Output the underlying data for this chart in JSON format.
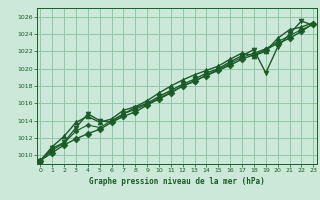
{
  "title": "Graphe pression niveau de la mer (hPa)",
  "bg_color": "#cce8d8",
  "grid_color": "#88c4a0",
  "line_color": "#1a5c28",
  "marker_color": "#1a5c28",
  "xlim": [
    -0.3,
    23.3
  ],
  "ylim": [
    1009.0,
    1027.0
  ],
  "yticks": [
    1010,
    1012,
    1014,
    1016,
    1018,
    1020,
    1022,
    1024,
    1026
  ],
  "xticks": [
    0,
    1,
    2,
    3,
    4,
    5,
    6,
    7,
    8,
    9,
    10,
    11,
    12,
    13,
    14,
    15,
    16,
    17,
    18,
    19,
    20,
    21,
    22,
    23
  ],
  "series": [
    {
      "y": [
        1009.4,
        1010.3,
        1011.2,
        1011.9,
        1012.5,
        1013.0,
        1013.8,
        1014.5,
        1015.0,
        1015.8,
        1016.5,
        1017.2,
        1018.0,
        1018.6,
        1019.2,
        1019.8,
        1020.4,
        1021.1,
        1021.6,
        1022.2,
        1022.9,
        1023.5,
        1024.3,
        1025.2
      ],
      "marker": "D",
      "ms": 3.5,
      "lw": 1.0
    },
    {
      "y": [
        1009.4,
        1011.0,
        1012.2,
        1013.8,
        1014.5,
        1013.8,
        1014.2,
        1015.2,
        1015.6,
        1016.3,
        1017.2,
        1018.0,
        1018.7,
        1019.3,
        1019.8,
        1020.3,
        1021.1,
        1021.8,
        1021.5,
        1022.0,
        1023.5,
        1024.5,
        1024.8,
        1025.3
      ],
      "marker": "^",
      "ms": 3.5,
      "lw": 1.0
    },
    {
      "y": [
        1009.4,
        1010.8,
        1011.5,
        1013.2,
        1014.8,
        1014.0,
        1013.8,
        1014.8,
        1015.5,
        1016.0,
        1016.8,
        1017.5,
        1018.2,
        1018.8,
        1019.5,
        1020.0,
        1020.8,
        1021.5,
        1022.2,
        1019.5,
        1022.5,
        1024.0,
        1025.5,
        1025.0
      ],
      "marker": "v",
      "ms": 3.5,
      "lw": 1.0
    },
    {
      "y": [
        1009.4,
        1010.6,
        1011.4,
        1012.8,
        1013.5,
        1013.2,
        1014.0,
        1014.8,
        1015.3,
        1015.9,
        1016.6,
        1017.3,
        1018.0,
        1018.5,
        1019.3,
        1019.9,
        1020.6,
        1021.3,
        1021.8,
        1022.3,
        1023.1,
        1023.8,
        1024.5,
        1025.1
      ],
      "marker": "D",
      "ms": 2.5,
      "lw": 0.8
    }
  ]
}
